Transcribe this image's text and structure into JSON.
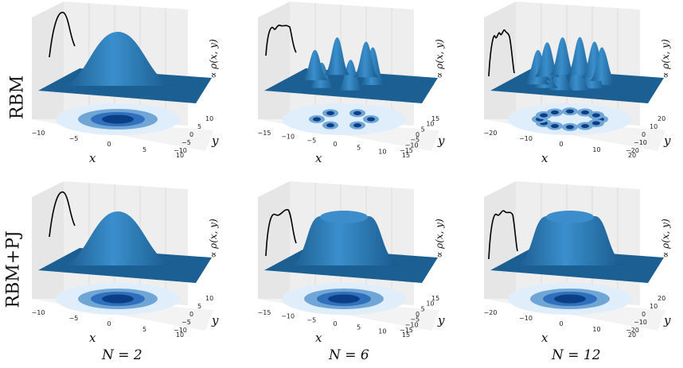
{
  "row_labels": [
    "RBM",
    "RBM+PJ"
  ],
  "col_labels": [
    "N = 2",
    "N = 6",
    "N = 12"
  ],
  "colors": {
    "surface": "#2d7fb8",
    "surface_dark": "#1c5f92",
    "contour_light": "#dfeefa",
    "contour_mid": "#6fa6d6",
    "contour_dark": "#0b3f85",
    "marginal_line": "#000000",
    "pane": "#eeeeee",
    "grid": "#d0d0d0"
  },
  "chart_data": [
    {
      "type": "surface3d",
      "row": "RBM",
      "column": "N = 2",
      "xlabel": "x",
      "ylabel": "y",
      "zlabel": "∝ ρ(x, y)",
      "x_ticks": [
        "−10",
        "−5",
        "0",
        "5",
        "10"
      ],
      "y_ticks": [
        "10",
        "5",
        "0",
        "−5",
        "−10"
      ],
      "xlim": [
        -10,
        10
      ],
      "ylim": [
        -10,
        10
      ],
      "peaks": 1,
      "ring": false
    },
    {
      "type": "surface3d",
      "row": "RBM",
      "column": "N = 6",
      "xlabel": "x",
      "ylabel": "y",
      "zlabel": "∝ ρ(x, y)",
      "x_ticks": [
        "−15",
        "−10",
        "−5",
        "0",
        "5",
        "10",
        "15"
      ],
      "y_ticks": [
        "15",
        "10",
        "5",
        "0",
        "−5",
        "−10",
        "−15"
      ],
      "xlim": [
        -15,
        15
      ],
      "ylim": [
        -15,
        15
      ],
      "peaks": 6,
      "ring": false
    },
    {
      "type": "surface3d",
      "row": "RBM",
      "column": "N = 12",
      "xlabel": "x",
      "ylabel": "y",
      "zlabel": "∝ ρ(x, y)",
      "x_ticks": [
        "−20",
        "−10",
        "0",
        "10",
        "20"
      ],
      "y_ticks": [
        "20",
        "10",
        "0",
        "−10",
        "−20"
      ],
      "xlim": [
        -20,
        20
      ],
      "ylim": [
        -20,
        20
      ],
      "peaks": 12,
      "ring": false
    },
    {
      "type": "surface3d",
      "row": "RBM+PJ",
      "column": "N = 2",
      "xlabel": "x",
      "ylabel": "y",
      "zlabel": "∝ ρ(x, y)",
      "x_ticks": [
        "−10",
        "−5",
        "0",
        "5",
        "10"
      ],
      "y_ticks": [
        "10",
        "5",
        "0",
        "−5",
        "−10"
      ],
      "xlim": [
        -10,
        10
      ],
      "ylim": [
        -10,
        10
      ],
      "peaks": 1,
      "ring": false
    },
    {
      "type": "surface3d",
      "row": "RBM+PJ",
      "column": "N = 6",
      "xlabel": "x",
      "ylabel": "y",
      "zlabel": "∝ ρ(x, y)",
      "x_ticks": [
        "−15",
        "−10",
        "−5",
        "0",
        "5",
        "10",
        "15"
      ],
      "y_ticks": [
        "15",
        "10",
        "5",
        "0",
        "−5",
        "−10",
        "−15"
      ],
      "xlim": [
        -15,
        15
      ],
      "ylim": [
        -15,
        15
      ],
      "peaks": 1,
      "ring": true
    },
    {
      "type": "surface3d",
      "row": "RBM+PJ",
      "column": "N = 12",
      "xlabel": "x",
      "ylabel": "y",
      "zlabel": "∝ ρ(x, y)",
      "x_ticks": [
        "−20",
        "−10",
        "0",
        "10",
        "20"
      ],
      "y_ticks": [
        "20",
        "10",
        "0",
        "−10",
        "−20"
      ],
      "xlim": [
        -20,
        20
      ],
      "ylim": [
        -20,
        20
      ],
      "peaks": 1,
      "ring": true
    }
  ]
}
